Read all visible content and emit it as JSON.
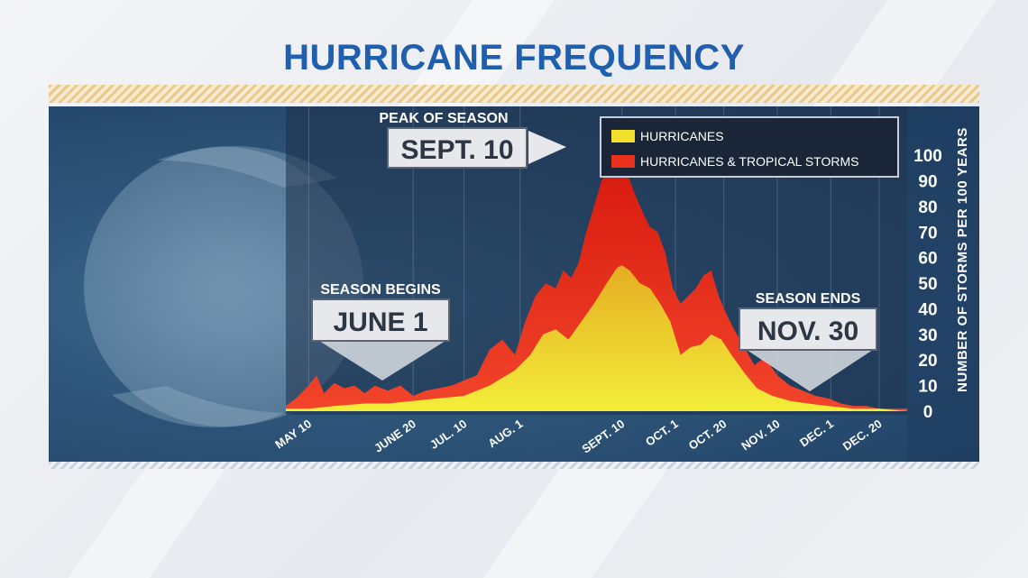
{
  "title": "HURRICANE FREQUENCY",
  "colors": {
    "title": "#1f5fae",
    "hurricanes": "#f2e02c",
    "storms": "#e8321e",
    "panel": "#2d5478"
  },
  "legend": {
    "hurricanes": "HURRICANES",
    "storms": "HURRICANES & TROPICAL STORMS"
  },
  "callouts": {
    "peak": {
      "label": "PEAK OF SEASON",
      "date": "SEPT. 10"
    },
    "begins": {
      "label": "SEASON BEGINS",
      "date": "JUNE 1"
    },
    "ends": {
      "label": "SEASON ENDS",
      "date": "NOV. 30"
    }
  },
  "chart_data": {
    "type": "area",
    "ylabel": "NUMBER OF STORMS PER 100 YEARS",
    "ylim": [
      0,
      105
    ],
    "yticks": [
      0,
      10,
      20,
      30,
      40,
      50,
      60,
      70,
      80,
      90,
      100
    ],
    "xlim": [
      "2000-05-01",
      "2000-12-31"
    ],
    "xtick_labels": [
      "MAY 10",
      "JUNE 20",
      "JUL. 10",
      "AUG. 1",
      "SEPT. 10",
      "OCT. 1",
      "OCT. 20",
      "NOV. 10",
      "DEC. 1",
      "DEC. 20"
    ],
    "xtick_dates": [
      "2000-05-10",
      "2000-06-20",
      "2000-07-10",
      "2000-08-01",
      "2000-09-10",
      "2000-10-01",
      "2000-10-20",
      "2000-11-10",
      "2000-12-01",
      "2000-12-20"
    ],
    "legend_position": "top-right",
    "grid": true,
    "series": [
      {
        "name": "HURRICANES & TROPICAL STORMS",
        "color": "#e8321e",
        "x": [
          "2000-05-01",
          "2000-05-05",
          "2000-05-10",
          "2000-05-13",
          "2000-05-16",
          "2000-05-20",
          "2000-05-24",
          "2000-05-28",
          "2000-06-01",
          "2000-06-05",
          "2000-06-10",
          "2000-06-15",
          "2000-06-20",
          "2000-06-25",
          "2000-06-30",
          "2000-07-05",
          "2000-07-10",
          "2000-07-15",
          "2000-07-20",
          "2000-07-25",
          "2000-07-30",
          "2000-08-03",
          "2000-08-07",
          "2000-08-11",
          "2000-08-15",
          "2000-08-18",
          "2000-08-21",
          "2000-08-24",
          "2000-08-27",
          "2000-08-30",
          "2000-09-02",
          "2000-09-05",
          "2000-09-08",
          "2000-09-10",
          "2000-09-12",
          "2000-09-15",
          "2000-09-18",
          "2000-09-21",
          "2000-09-24",
          "2000-09-27",
          "2000-09-30",
          "2000-10-03",
          "2000-10-06",
          "2000-10-09",
          "2000-10-12",
          "2000-10-15",
          "2000-10-18",
          "2000-10-21",
          "2000-10-24",
          "2000-10-28",
          "2000-11-01",
          "2000-11-05",
          "2000-11-10",
          "2000-11-15",
          "2000-11-20",
          "2000-11-25",
          "2000-11-30",
          "2000-12-05",
          "2000-12-10",
          "2000-12-15",
          "2000-12-20",
          "2000-12-25",
          "2000-12-31"
        ],
        "values": [
          2,
          5,
          10,
          14,
          7,
          11,
          9,
          10,
          7,
          10,
          8,
          10,
          6,
          8,
          9,
          10,
          12,
          14,
          24,
          28,
          22,
          35,
          45,
          50,
          48,
          55,
          52,
          58,
          70,
          80,
          90,
          95,
          101,
          98,
          93,
          85,
          78,
          72,
          70,
          62,
          48,
          42,
          45,
          48,
          53,
          55,
          45,
          38,
          32,
          25,
          18,
          21,
          14,
          10,
          8,
          6,
          5,
          3,
          2,
          2,
          1,
          1,
          1
        ]
      },
      {
        "name": "HURRICANES",
        "color": "#f2e02c",
        "x": [
          "2000-05-01",
          "2000-05-10",
          "2000-05-20",
          "2000-06-01",
          "2000-06-10",
          "2000-06-20",
          "2000-06-30",
          "2000-07-10",
          "2000-07-20",
          "2000-07-30",
          "2000-08-05",
          "2000-08-10",
          "2000-08-15",
          "2000-08-20",
          "2000-08-25",
          "2000-08-30",
          "2000-09-04",
          "2000-09-08",
          "2000-09-10",
          "2000-09-13",
          "2000-09-17",
          "2000-09-21",
          "2000-09-25",
          "2000-09-29",
          "2000-10-03",
          "2000-10-07",
          "2000-10-11",
          "2000-10-15",
          "2000-10-19",
          "2000-10-23",
          "2000-10-28",
          "2000-11-02",
          "2000-11-08",
          "2000-11-15",
          "2000-11-22",
          "2000-11-30",
          "2000-12-10",
          "2000-12-20",
          "2000-12-31"
        ],
        "values": [
          1,
          1,
          2,
          3,
          3,
          4,
          5,
          6,
          10,
          16,
          22,
          30,
          32,
          28,
          35,
          42,
          50,
          56,
          57,
          55,
          50,
          48,
          42,
          35,
          22,
          25,
          26,
          30,
          28,
          22,
          15,
          9,
          6,
          4,
          3,
          2,
          1,
          1,
          0
        ]
      }
    ]
  }
}
